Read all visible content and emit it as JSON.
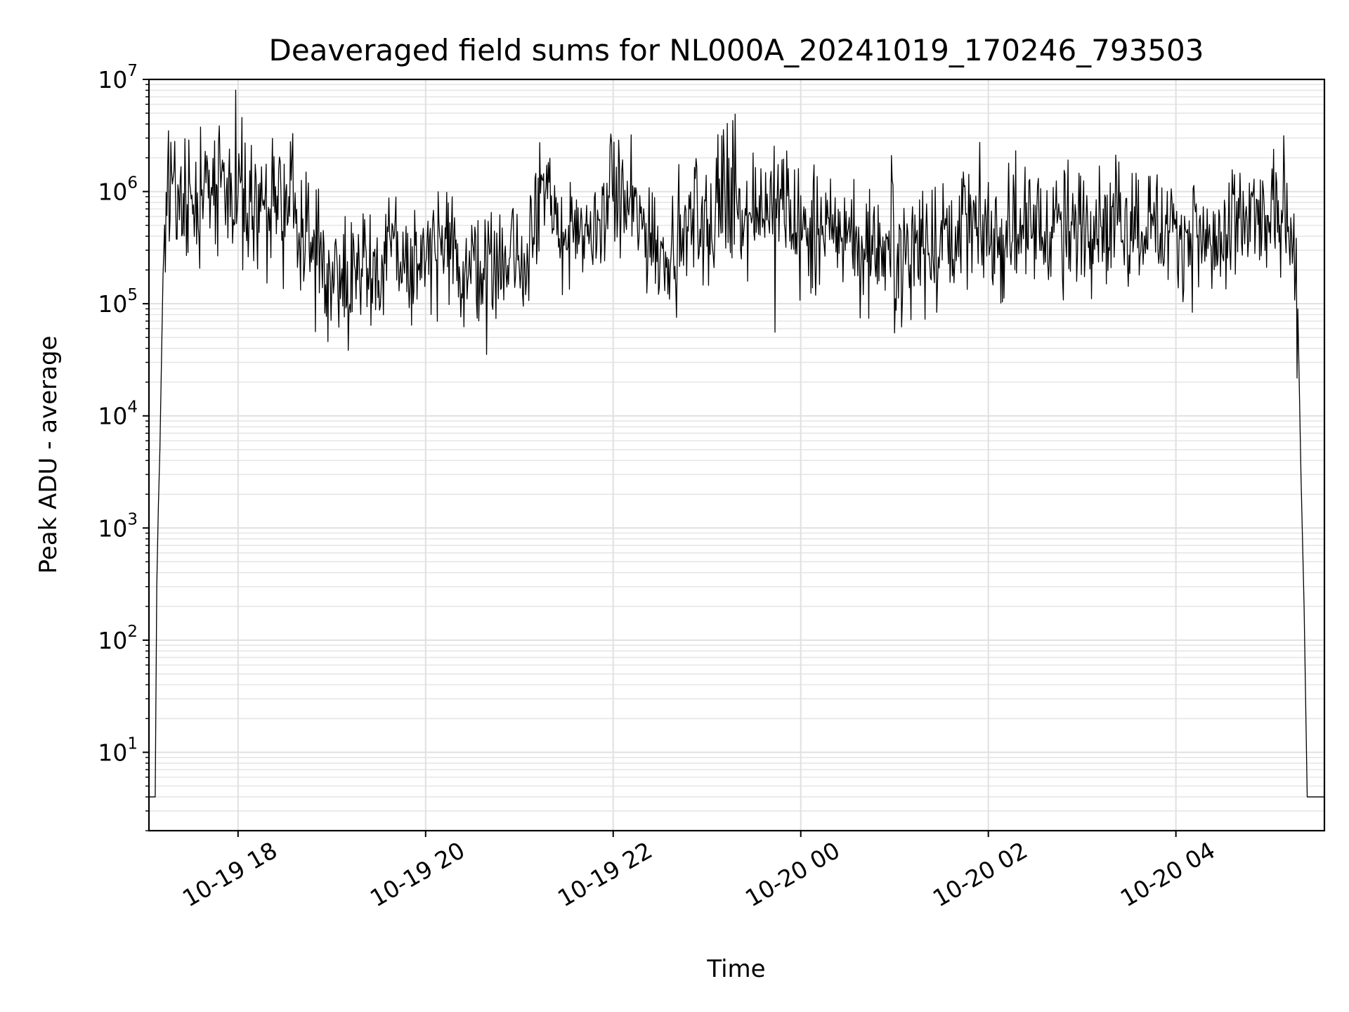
{
  "chart_data": {
    "type": "line",
    "title": "Deaveraged field sums for NL000A_20241019_170246_793503",
    "xlabel": "Time",
    "ylabel": "Peak ADU - average",
    "yscale": "log",
    "ylim": [
      2,
      10000000
    ],
    "xlim": [
      "2024-10-19 17:03",
      "2024-10-20 05:35"
    ],
    "grid": true,
    "line_color": "#000000",
    "x_ticks": [
      {
        "label": "10-19 18",
        "value": "2024-10-19 18:00"
      },
      {
        "label": "10-19 20",
        "value": "2024-10-19 20:00"
      },
      {
        "label": "10-19 22",
        "value": "2024-10-19 22:00"
      },
      {
        "label": "10-20 00",
        "value": "2024-10-20 00:00"
      },
      {
        "label": "10-20 02",
        "value": "2024-10-20 02:00"
      },
      {
        "label": "10-20 04",
        "value": "2024-10-20 04:00"
      }
    ],
    "y_ticks": [
      {
        "base": "10",
        "exp": "1",
        "value": 10
      },
      {
        "base": "10",
        "exp": "2",
        "value": 100
      },
      {
        "base": "10",
        "exp": "3",
        "value": 1000
      },
      {
        "base": "10",
        "exp": "4",
        "value": 10000
      },
      {
        "base": "10",
        "exp": "5",
        "value": 100000
      },
      {
        "base": "10",
        "exp": "6",
        "value": 1000000
      },
      {
        "base": "10",
        "exp": "7",
        "value": 10000000
      }
    ],
    "series": [
      {
        "x": [
          "2024-10-19 17:03",
          "2024-10-19 17:05",
          "2024-10-19 17:07",
          "2024-10-19 17:08",
          "2024-10-19 17:09",
          "2024-10-19 17:10",
          "2024-10-19 17:12",
          "2024-10-19 17:15",
          "2024-10-19 17:20",
          "2024-10-19 17:25",
          "2024-10-19 17:30",
          "2024-10-19 17:35",
          "2024-10-19 17:40",
          "2024-10-19 17:45",
          "2024-10-19 17:50",
          "2024-10-19 17:55",
          "2024-10-19 18:00",
          "2024-10-19 18:10",
          "2024-10-19 18:20",
          "2024-10-19 18:30",
          "2024-10-19 18:40",
          "2024-10-19 18:50",
          "2024-10-19 19:00",
          "2024-10-19 19:10",
          "2024-10-19 19:20",
          "2024-10-19 19:30",
          "2024-10-19 19:40",
          "2024-10-19 19:50",
          "2024-10-19 20:00",
          "2024-10-19 20:10",
          "2024-10-19 20:20",
          "2024-10-19 20:30",
          "2024-10-19 20:40",
          "2024-10-19 20:50",
          "2024-10-19 21:00",
          "2024-10-19 21:05",
          "2024-10-19 21:10",
          "2024-10-19 21:20",
          "2024-10-19 21:30",
          "2024-10-19 21:40",
          "2024-10-19 21:50",
          "2024-10-19 22:00",
          "2024-10-19 22:10",
          "2024-10-19 22:20",
          "2024-10-19 22:30",
          "2024-10-19 22:40",
          "2024-10-19 22:50",
          "2024-10-19 23:00",
          "2024-10-19 23:10",
          "2024-10-19 23:20",
          "2024-10-19 23:30",
          "2024-10-19 23:40",
          "2024-10-19 23:50",
          "2024-10-20 00:00",
          "2024-10-20 00:10",
          "2024-10-20 00:20",
          "2024-10-20 00:30",
          "2024-10-20 00:40",
          "2024-10-20 00:50",
          "2024-10-20 01:00",
          "2024-10-20 01:10",
          "2024-10-20 01:20",
          "2024-10-20 01:30",
          "2024-10-20 01:40",
          "2024-10-20 01:50",
          "2024-10-20 02:00",
          "2024-10-20 02:10",
          "2024-10-20 02:20",
          "2024-10-20 02:30",
          "2024-10-20 02:40",
          "2024-10-20 02:50",
          "2024-10-20 03:00",
          "2024-10-20 03:10",
          "2024-10-20 03:20",
          "2024-10-20 03:30",
          "2024-10-20 03:40",
          "2024-10-20 03:50",
          "2024-10-20 04:00",
          "2024-10-20 04:10",
          "2024-10-20 04:20",
          "2024-10-20 04:30",
          "2024-10-20 04:40",
          "2024-10-20 04:50",
          "2024-10-20 05:00",
          "2024-10-20 05:10",
          "2024-10-20 05:15",
          "2024-10-20 05:18",
          "2024-10-20 05:20",
          "2024-10-20 05:22",
          "2024-10-20 05:24",
          "2024-10-20 05:26",
          "2024-10-20 05:28",
          "2024-10-20 05:35"
        ],
        "y": [
          4,
          4,
          4,
          300,
          1500,
          5000,
          100000,
          900000,
          1100000,
          800000,
          1200000,
          700000,
          1300000,
          900000,
          1600000,
          700000,
          1100000,
          900000,
          600000,
          700000,
          500000,
          300000,
          200000,
          180000,
          250000,
          200000,
          300000,
          220000,
          250000,
          280000,
          200000,
          230000,
          180000,
          260000,
          220000,
          250000,
          1200000,
          600000,
          400000,
          350000,
          450000,
          900000,
          700000,
          500000,
          300000,
          350000,
          500000,
          450000,
          600000,
          900000,
          700000,
          800000,
          700000,
          400000,
          350000,
          450000,
          500000,
          300000,
          350000,
          300000,
          350000,
          400000,
          350000,
          600000,
          500000,
          450000,
          400000,
          450000,
          500000,
          550000,
          450000,
          500000,
          600000,
          550000,
          500000,
          600000,
          450000,
          450000,
          400000,
          350000,
          300000,
          500000,
          550000,
          500000,
          800000,
          600000,
          90000,
          3000,
          200,
          4,
          4,
          4,
          4
        ]
      }
    ]
  }
}
